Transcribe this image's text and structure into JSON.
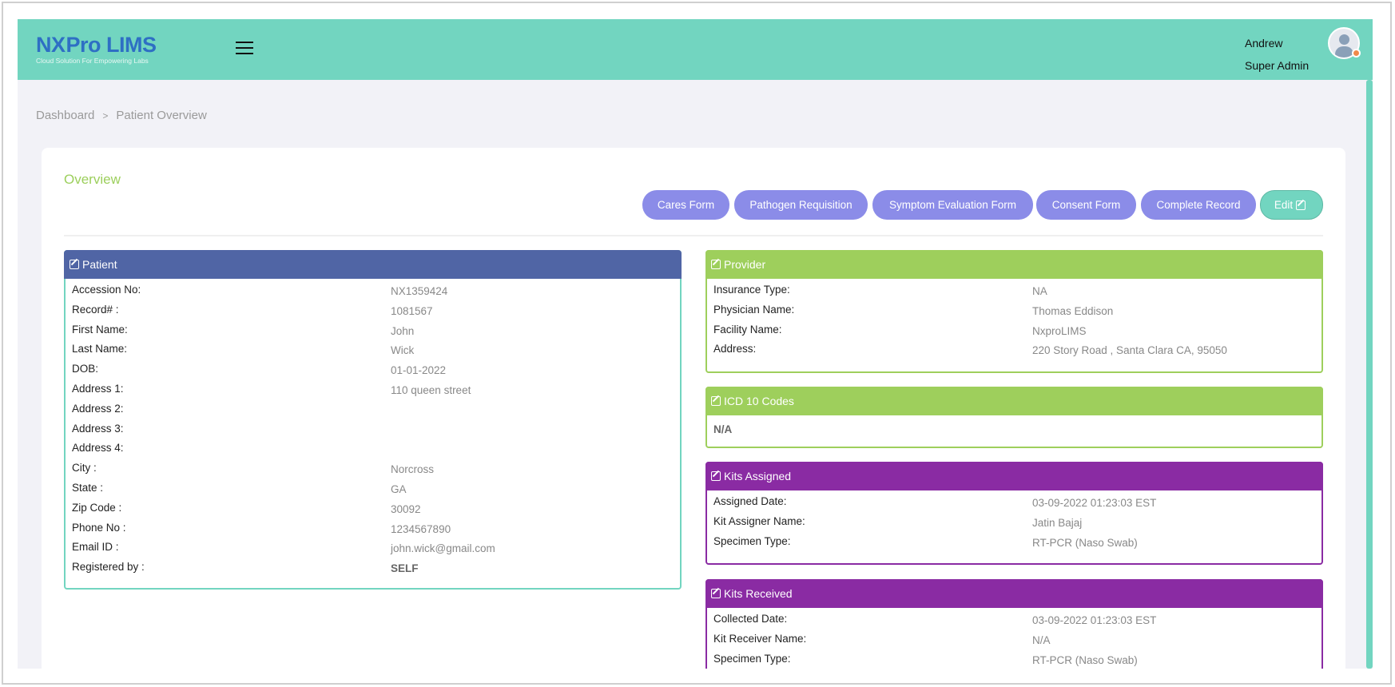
{
  "header": {
    "logo": "NXProLIMS",
    "logo_prefix": "NX",
    "logo_suffix": "Pro LIMS",
    "tagline": "Cloud Solution For Empowering Labs",
    "user_name": "Andrew",
    "user_role": "Super Admin"
  },
  "breadcrumb": {
    "items": [
      "Dashboard",
      "Patient Overview"
    ]
  },
  "overview": {
    "title": "Overview",
    "buttons": [
      "Cares Form",
      "Pathogen Requisition",
      "Symptom Evaluation Form",
      "Consent Form",
      "Complete Record",
      "Edit"
    ]
  },
  "colors": {
    "header": "#72d5c0",
    "button": "#8b8ce8",
    "patient": "#5065a5",
    "provider": "#9ecf5c",
    "kits": "#8a2ba3"
  },
  "patient": {
    "title": "Patient",
    "rows": [
      {
        "label": "Accession No:",
        "value": "NX1359424"
      },
      {
        "label": "Record# :",
        "value": "1081567"
      },
      {
        "label": "First Name:",
        "value": "John"
      },
      {
        "label": "Last Name:",
        "value": "Wick"
      },
      {
        "label": "DOB:",
        "value": "01-01-2022"
      },
      {
        "label": "Address 1:",
        "value": "110 queen street"
      },
      {
        "label": "Address 2:",
        "value": ""
      },
      {
        "label": "Address 3:",
        "value": ""
      },
      {
        "label": "Address 4:",
        "value": ""
      },
      {
        "label": "City :",
        "value": "Norcross"
      },
      {
        "label": "State :",
        "value": "GA"
      },
      {
        "label": "Zip Code :",
        "value": "30092"
      },
      {
        "label": "Phone No :",
        "value": "1234567890"
      },
      {
        "label": "Email ID :",
        "value": "john.wick@gmail.com"
      },
      {
        "label": "Registered by :",
        "value": "SELF"
      }
    ]
  },
  "provider": {
    "title": "Provider",
    "rows": [
      {
        "label": "Insurance Type:",
        "value": "NA"
      },
      {
        "label": "Physician Name:",
        "value": "Thomas Eddison"
      },
      {
        "label": "Facility Name:",
        "value": "NxproLIMS"
      },
      {
        "label": "Address:",
        "value": "220 Story Road , Santa Clara CA, 95050"
      }
    ]
  },
  "icd": {
    "title": "ICD 10 Codes",
    "value": "N/A"
  },
  "kits_assigned": {
    "title": "Kits Assigned",
    "rows": [
      {
        "label": "Assigned Date:",
        "value": "03-09-2022 01:23:03 EST"
      },
      {
        "label": "Kit Assigner Name:",
        "value": "Jatin Bajaj"
      },
      {
        "label": "Specimen Type:",
        "value": "RT-PCR (Naso Swab)"
      }
    ]
  },
  "kits_received": {
    "title": "Kits Received",
    "rows": [
      {
        "label": "Collected Date:",
        "value": "03-09-2022 01:23:03 EST"
      },
      {
        "label": "Kit Receiver Name:",
        "value": "N/A"
      },
      {
        "label": "Specimen Type:",
        "value": "RT-PCR (Naso Swab)"
      }
    ]
  }
}
